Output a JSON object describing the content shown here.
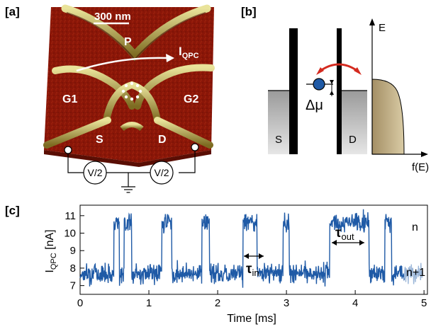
{
  "panels": {
    "a": "[a]",
    "b": "[b]",
    "c": "[c]"
  },
  "afm": {
    "scale_bar": "300 nm",
    "label_p": "P",
    "label_i": "I",
    "label_i_sub": "QPC",
    "label_g1": "G1",
    "label_g2": "G2",
    "label_s": "S",
    "label_d": "D",
    "bias_left": "V/2",
    "bias_right": "V/2"
  },
  "energy_diagram": {
    "axis_e": "E",
    "axis_f": "f(E)",
    "label_s": "S",
    "label_d": "D",
    "delta_mu": "Δμ"
  },
  "chart_data": {
    "type": "line",
    "xlabel": "Time [ms]",
    "ylabel": "I",
    "ylabel_sub": "QPC",
    "ylabel_unit": " [nA]",
    "xlim": [
      0,
      5.05
    ],
    "ylim": [
      6.5,
      11.6
    ],
    "x_ticks": [
      0,
      1,
      2,
      3,
      4,
      5
    ],
    "y_ticks": [
      7,
      8,
      9,
      10,
      11
    ],
    "levels": {
      "low": 7.7,
      "high": 10.6
    },
    "high_intervals_ms": [
      [
        0.49,
        0.57
      ],
      [
        0.64,
        0.75
      ],
      [
        1.19,
        1.33
      ],
      [
        1.77,
        1.88
      ],
      [
        2.37,
        2.57
      ],
      [
        2.95,
        3.04
      ],
      [
        3.63,
        4.2
      ],
      [
        4.43,
        4.53
      ]
    ],
    "annotations": {
      "tau_in": "τ",
      "tau_in_sub": "in",
      "tau_out": "τ",
      "tau_out_sub": "out",
      "state_n": "n",
      "state_n1": "n+1"
    },
    "colors": {
      "trace": "#1f5aa6",
      "trace_faded": "#9bb6d8"
    }
  }
}
